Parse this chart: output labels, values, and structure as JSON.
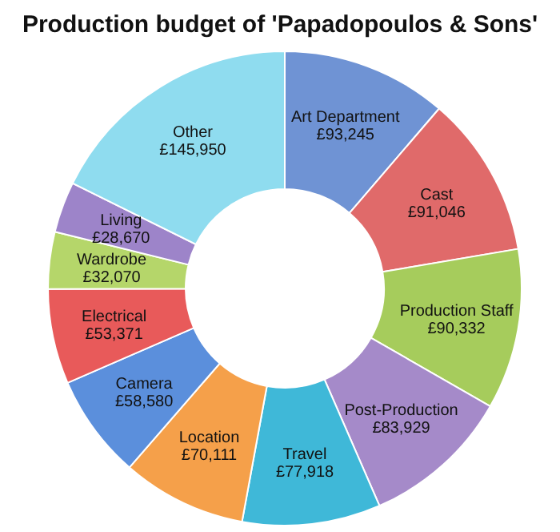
{
  "chart_data": {
    "type": "donut",
    "title": "Production budget of 'Papadopoulos & Sons'",
    "categories": [
      "Art Department",
      "Cast",
      "Production Staff",
      "Post-Production",
      "Travel",
      "Location",
      "Camera",
      "Electrical",
      "Wardrobe",
      "Living",
      "Other"
    ],
    "values": [
      93245,
      91046,
      90332,
      83929,
      77918,
      70111,
      58580,
      53371,
      32070,
      28670,
      145950
    ],
    "value_labels": [
      "£93,245",
      "£91,046",
      "£90,332",
      "£83,929",
      "£77,918",
      "£70,111",
      "£58,580",
      "£53,371",
      "£32,070",
      "£28,670",
      "£145,950"
    ],
    "colors": [
      "#6f93d4",
      "#e06a6a",
      "#a6cc5c",
      "#a58ac9",
      "#3fb8d8",
      "#f5a04a",
      "#5b8fdc",
      "#e85a5a",
      "#b5d66a",
      "#9d84c9",
      "#8fdcef"
    ],
    "legend": false
  }
}
